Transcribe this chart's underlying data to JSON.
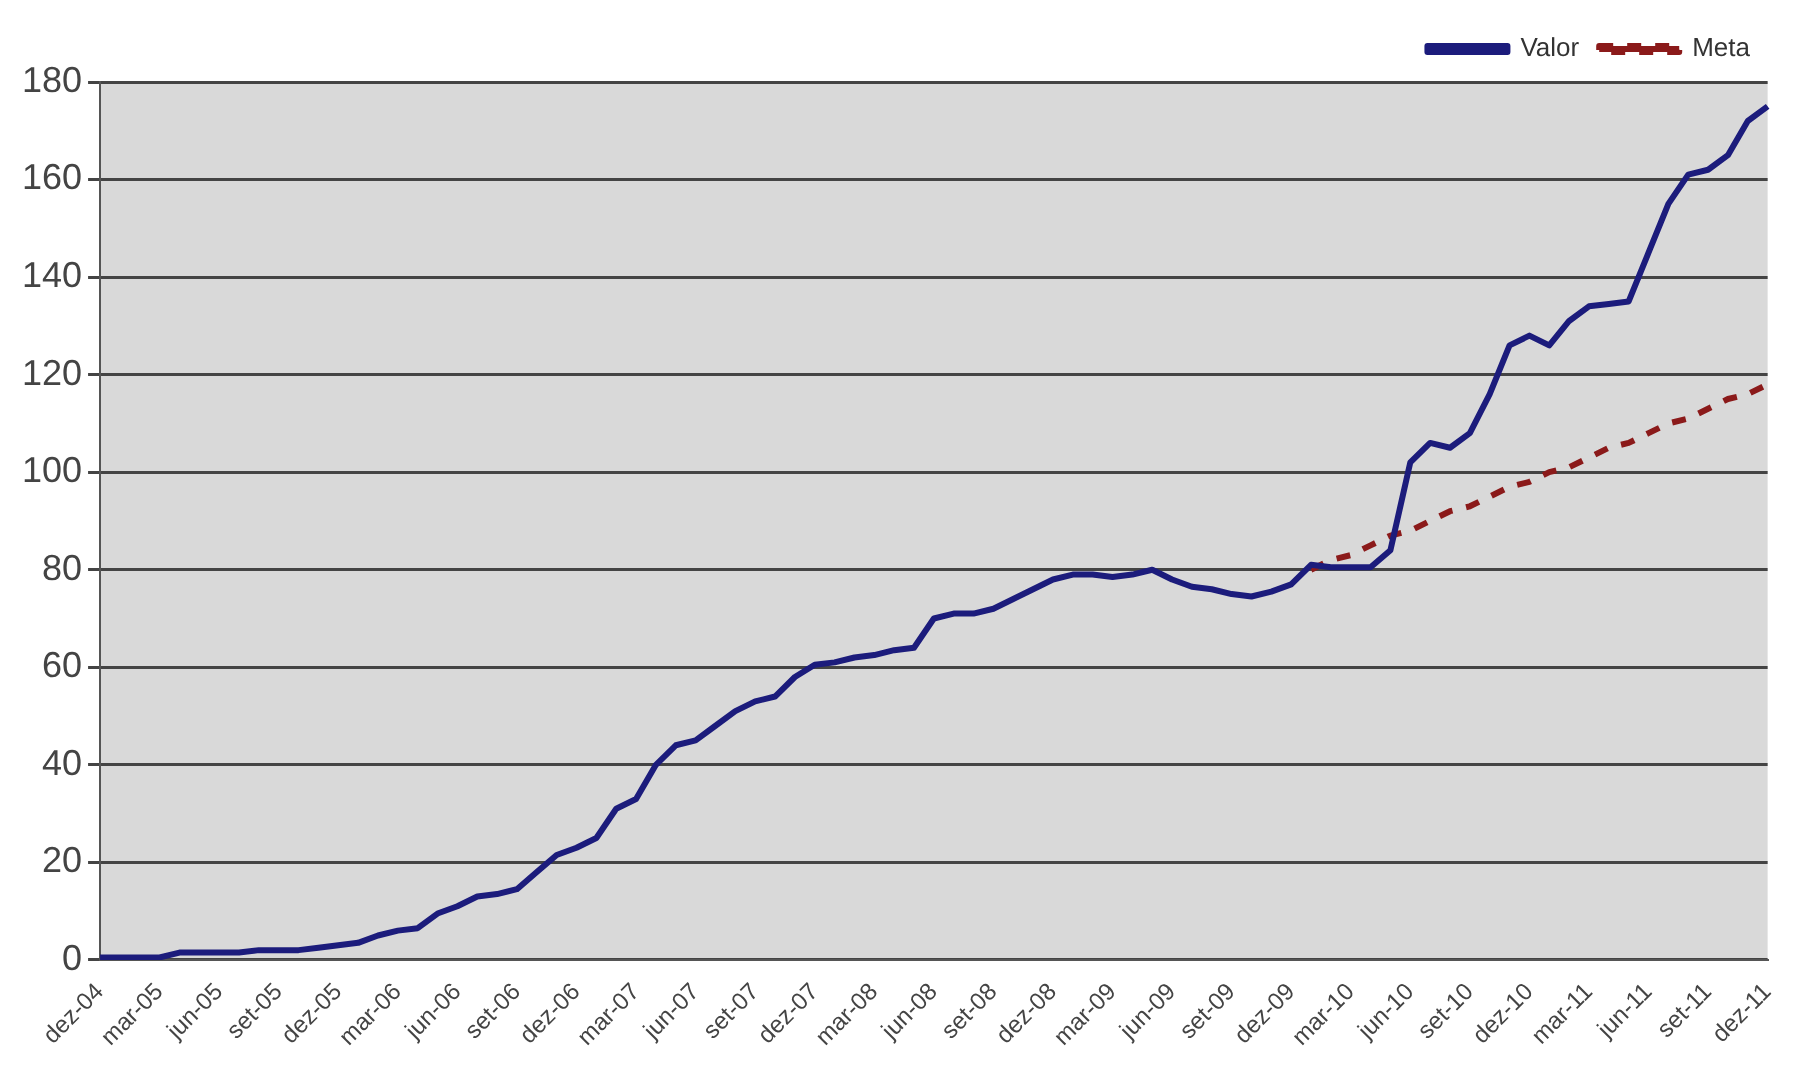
{
  "chart_data": {
    "type": "line",
    "categories": [
      "dez-04",
      null,
      null,
      "mar-05",
      null,
      null,
      "jun-05",
      null,
      null,
      "set-05",
      null,
      null,
      "dez-05",
      null,
      null,
      "mar-06",
      null,
      null,
      "jun-06",
      null,
      null,
      "set-06",
      null,
      null,
      "dez-06",
      null,
      null,
      "mar-07",
      null,
      null,
      "jun-07",
      null,
      null,
      "set-07",
      null,
      null,
      "dez-07",
      null,
      null,
      "mar-08",
      null,
      null,
      "jun-08",
      null,
      null,
      "set-08",
      null,
      null,
      "dez-08",
      null,
      null,
      "mar-09",
      null,
      null,
      "jun-09",
      null,
      null,
      "set-09",
      null,
      null,
      "dez-09",
      null,
      null,
      "mar-10",
      null,
      null,
      "jun-10",
      null,
      null,
      "set-10",
      null,
      null,
      "dez-10",
      null,
      null,
      "mar-11",
      null,
      null,
      "jun-11",
      null,
      null,
      "set-11",
      null,
      null,
      "dez-11"
    ],
    "series": [
      {
        "name": "Valor",
        "color": "#1c1c7c",
        "line_style": "solid",
        "values": [
          0.5,
          0.5,
          0.5,
          0.5,
          1.5,
          1.5,
          1.5,
          1.5,
          2,
          2,
          2,
          2.5,
          3,
          3.5,
          5,
          6,
          6.5,
          9.5,
          11,
          13,
          13.5,
          14.5,
          18,
          21.5,
          23,
          25,
          31,
          33,
          40,
          44,
          45,
          48,
          51,
          53,
          54,
          58,
          60.5,
          61,
          62,
          62.5,
          63.5,
          64,
          70,
          71,
          71,
          72,
          74,
          76,
          78,
          79,
          79,
          78.5,
          79,
          80,
          78,
          76.5,
          76,
          75,
          74.5,
          75.5,
          77,
          81,
          80.5,
          80.5,
          80.5,
          84,
          102,
          106,
          105,
          108,
          116,
          126,
          128,
          126,
          131,
          134,
          134.5,
          135,
          145,
          155,
          161,
          162,
          165,
          172,
          175
        ]
      },
      {
        "name": "Meta",
        "color": "#8b1a1a",
        "line_style": "dashed",
        "values": [
          null,
          null,
          null,
          null,
          null,
          null,
          null,
          null,
          null,
          null,
          null,
          null,
          null,
          null,
          null,
          null,
          null,
          null,
          null,
          null,
          null,
          null,
          null,
          null,
          null,
          null,
          null,
          null,
          null,
          null,
          null,
          null,
          null,
          null,
          null,
          null,
          null,
          null,
          null,
          null,
          null,
          null,
          null,
          null,
          null,
          null,
          null,
          null,
          null,
          null,
          null,
          null,
          null,
          null,
          null,
          null,
          null,
          null,
          null,
          null,
          null,
          80,
          82,
          83,
          85,
          87,
          88,
          90,
          92,
          93,
          95,
          97,
          98,
          100,
          101,
          103,
          105,
          106,
          108,
          110,
          111,
          113,
          115,
          116,
          118
        ]
      }
    ],
    "ylim": [
      0,
      180
    ],
    "yticks": [
      0,
      20,
      40,
      60,
      80,
      100,
      120,
      140,
      160,
      180
    ],
    "grid": "y",
    "legend": "top right",
    "marker": "none"
  }
}
